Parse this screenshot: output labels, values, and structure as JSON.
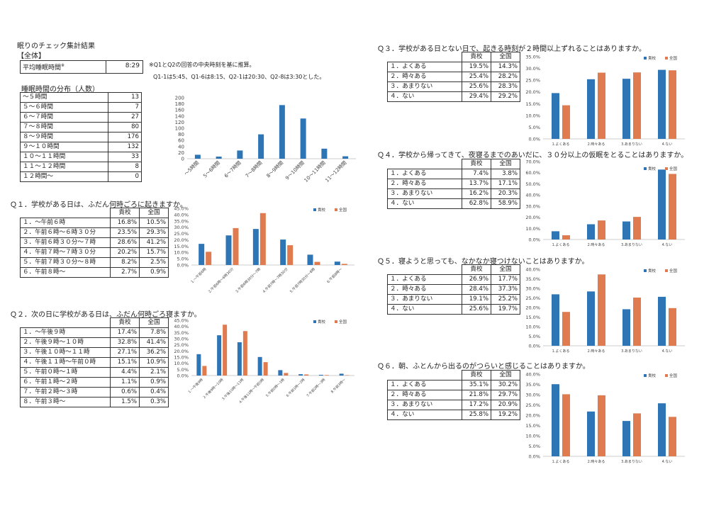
{
  "title": "眠りのチェック集計結果",
  "section_all": "【全体】",
  "avg": {
    "label": "平均睡眠時間",
    "mark": "※",
    "value": "8:29"
  },
  "notes": [
    "※Q1とQ2の回答の中央時刻を基に推算。",
    "Q1-1は5:45、Q1-6は8:15、Q2-1は20:30、Q2-8は3:30とした。"
  ],
  "dist": {
    "title": "睡眠時間の分布（人数）",
    "rows": [
      {
        "label": "～５時間",
        "value": "13"
      },
      {
        "label": "５～６時間",
        "value": "7"
      },
      {
        "label": "６～７時間",
        "value": "27"
      },
      {
        "label": "７～８時間",
        "value": "80"
      },
      {
        "label": "８～９時間",
        "value": "176"
      },
      {
        "label": "９～１０時間",
        "value": "132"
      },
      {
        "label": "１０～１１時間",
        "value": "33"
      },
      {
        "label": "１１～１２時間",
        "value": "8"
      },
      {
        "label": "１２時間～",
        "value": "0"
      }
    ]
  },
  "col_school": "貴校",
  "col_nation": "全国",
  "legend": [
    "貴校",
    "全国"
  ],
  "colors": {
    "school": "#2e75b6",
    "nation": "#e07b4f"
  },
  "questions": [
    {
      "title": "Ｑ１．学校がある日は、ふだん何時ごろに起きますか。",
      "rows": [
        {
          "label": "１．～午前６時",
          "s": "16.8%",
          "n": "10.5%"
        },
        {
          "label": "２．午前６時～６時３０分",
          "s": "23.5%",
          "n": "29.3%"
        },
        {
          "label": "３．午前６時３０分～７時",
          "s": "28.6%",
          "n": "41.2%"
        },
        {
          "label": "４．午前７時～７時３０分",
          "s": "20.2%",
          "n": "15.7%"
        },
        {
          "label": "５．午前７時３０分～８時",
          "s": "8.2%",
          "n": "2.5%"
        },
        {
          "label": "６．午前８時～",
          "s": "2.7%",
          "n": "0.9%"
        }
      ]
    },
    {
      "title": "Ｑ２．次の日に学校がある日は、ふだん何時ごろ寝ますか。",
      "rows": [
        {
          "label": "１．～午後９時",
          "s": "17.4%",
          "n": "7.8%"
        },
        {
          "label": "２．午後９時～１０時",
          "s": "32.8%",
          "n": "41.4%"
        },
        {
          "label": "３．午後１０時～１１時",
          "s": "27.1%",
          "n": "36.2%"
        },
        {
          "label": "４．午後１１時～午前０時",
          "s": "15.1%",
          "n": "10.9%"
        },
        {
          "label": "５．午前０時～１時",
          "s": "4.4%",
          "n": "2.1%"
        },
        {
          "label": "６．午前１時～２時",
          "s": "1.1%",
          "n": "0.9%"
        },
        {
          "label": "７．午前２時～３時",
          "s": "0.6%",
          "n": "0.4%"
        },
        {
          "label": "８．午前３時～",
          "s": "1.5%",
          "n": "0.3%"
        }
      ]
    },
    {
      "title": "Ｑ３．学校がある日とない日で、起きる時刻が２時間以上ずれることはありますか。",
      "rows": [
        {
          "label": "１．よくある",
          "s": "19.5%",
          "n": "14.3%"
        },
        {
          "label": "２．時々ある",
          "s": "25.4%",
          "n": "28.2%"
        },
        {
          "label": "３．あまりない",
          "s": "25.6%",
          "n": "28.3%"
        },
        {
          "label": "４．ない",
          "s": "29.4%",
          "n": "29.2%"
        }
      ]
    },
    {
      "title": "Ｑ４．学校から帰ってきて、夜寝るまでのあいだに、３０分以上の仮眠をとることはありますか。",
      "rows": [
        {
          "label": "１．よくある",
          "s": "7.4%",
          "n": "3.8%"
        },
        {
          "label": "２．時々ある",
          "s": "13.7%",
          "n": "17.1%"
        },
        {
          "label": "３．あまりない",
          "s": "16.2%",
          "n": "20.3%"
        },
        {
          "label": "４．ない",
          "s": "62.8%",
          "n": "58.9%"
        }
      ]
    },
    {
      "title": "Ｑ５．寝ようと思っても、なかなか寝つけないことはありますか。",
      "rows": [
        {
          "label": "１．よくある",
          "s": "26.9%",
          "n": "17.7%"
        },
        {
          "label": "２．時々ある",
          "s": "28.4%",
          "n": "37.3%"
        },
        {
          "label": "３．あまりない",
          "s": "19.1%",
          "n": "25.2%"
        },
        {
          "label": "４．ない",
          "s": "25.6%",
          "n": "19.7%"
        }
      ]
    },
    {
      "title": "Ｑ６．朝、ふとんから出るのがつらいと感じることはありますか。",
      "rows": [
        {
          "label": "１．よくある",
          "s": "35.1%",
          "n": "30.2%"
        },
        {
          "label": "２．時々ある",
          "s": "21.8%",
          "n": "29.7%"
        },
        {
          "label": "３．あまりない",
          "s": "17.2%",
          "n": "20.9%"
        },
        {
          "label": "４．ない",
          "s": "25.8%",
          "n": "19.2%"
        }
      ]
    }
  ],
  "chart_data": [
    {
      "type": "bar",
      "categories": [
        "～5時間",
        "5～6時間",
        "6～7時間",
        "7～8時間",
        "8～9時間",
        "9～10時間",
        "10～11時間",
        "11～12時間"
      ],
      "values": [
        13,
        7,
        27,
        80,
        176,
        132,
        33,
        8
      ],
      "ylim": [
        0,
        200
      ],
      "yticks": [
        "0",
        "20",
        "40",
        "60",
        "80",
        "100",
        "120",
        "140",
        "160",
        "180",
        "200"
      ]
    },
    {
      "type": "bar",
      "categories": [
        "1.～午前6時",
        "2.午前6時～6時30分",
        "3.午前6時30分～7時",
        "4.午前7時～7時30分",
        "5.午前7時30分～8時",
        "6.午前8時～"
      ],
      "series": [
        {
          "name": "貴校",
          "values": [
            16.8,
            23.5,
            28.6,
            20.2,
            8.2,
            2.7
          ]
        },
        {
          "name": "全国",
          "values": [
            10.5,
            29.3,
            41.2,
            15.7,
            2.5,
            0.9
          ]
        }
      ],
      "ylim": [
        0,
        45
      ],
      "yticks": [
        "0.0%",
        "5.0%",
        "10.0%",
        "15.0%",
        "20.0%",
        "25.0%",
        "30.0%",
        "35.0%",
        "40.0%",
        "45.0%"
      ]
    },
    {
      "type": "bar",
      "categories": [
        "1.～午後9時",
        "2.午後9時～10時",
        "3.午後10時～11時",
        "4.午後11時～午前0時",
        "5.午前0時～1時",
        "6.午前1時～2時",
        "7.午前2時～3時",
        "8.午前3時～"
      ],
      "series": [
        {
          "name": "貴校",
          "values": [
            17.4,
            32.8,
            27.1,
            15.1,
            4.4,
            1.1,
            0.6,
            1.5
          ]
        },
        {
          "name": "全国",
          "values": [
            7.8,
            41.4,
            36.2,
            10.9,
            2.1,
            0.9,
            0.4,
            0.3
          ]
        }
      ],
      "ylim": [
        0,
        45
      ],
      "yticks": [
        "0.0%",
        "5.0%",
        "10.0%",
        "15.0%",
        "20.0%",
        "25.0%",
        "30.0%",
        "35.0%",
        "40.0%",
        "45.0%"
      ]
    },
    {
      "type": "bar",
      "categories": [
        "1.よくある",
        "2.時々ある",
        "3.あまりない",
        "4.ない"
      ],
      "series": [
        {
          "name": "貴校",
          "values": [
            19.5,
            25.4,
            25.6,
            29.4
          ]
        },
        {
          "name": "全国",
          "values": [
            14.3,
            28.2,
            28.3,
            29.2
          ]
        }
      ],
      "ylim": [
        0,
        35
      ],
      "yticks": [
        "0.0%",
        "5.0%",
        "10.0%",
        "15.0%",
        "20.0%",
        "25.0%",
        "30.0%",
        "35.0%"
      ]
    },
    {
      "type": "bar",
      "categories": [
        "1.よくある",
        "2.時々ある",
        "3.あまりない",
        "4.ない"
      ],
      "series": [
        {
          "name": "貴校",
          "values": [
            7.4,
            13.7,
            16.2,
            62.8
          ]
        },
        {
          "name": "全国",
          "values": [
            3.8,
            17.1,
            20.3,
            58.9
          ]
        }
      ],
      "ylim": [
        0,
        70
      ],
      "yticks": [
        "0.0%",
        "10.0%",
        "20.0%",
        "30.0%",
        "40.0%",
        "50.0%",
        "60.0%",
        "70.0%"
      ]
    },
    {
      "type": "bar",
      "categories": [
        "1.よくある",
        "2.時々ある",
        "3.あまりない",
        "4.ない"
      ],
      "series": [
        {
          "name": "貴校",
          "values": [
            26.9,
            28.4,
            19.1,
            25.6
          ]
        },
        {
          "name": "全国",
          "values": [
            17.7,
            37.3,
            25.2,
            19.7
          ]
        }
      ],
      "ylim": [
        0,
        40
      ],
      "yticks": [
        "0.0%",
        "5.0%",
        "10.0%",
        "15.0%",
        "20.0%",
        "25.0%",
        "30.0%",
        "35.0%",
        "40.0%"
      ]
    },
    {
      "type": "bar",
      "categories": [
        "1.よくある",
        "2.時々ある",
        "3.あまりない",
        "4.ない"
      ],
      "series": [
        {
          "name": "貴校",
          "values": [
            35.1,
            21.8,
            17.2,
            25.8
          ]
        },
        {
          "name": "全国",
          "values": [
            30.2,
            29.7,
            20.9,
            19.2
          ]
        }
      ],
      "ylim": [
        0,
        40
      ],
      "yticks": [
        "0.0%",
        "5.0%",
        "10.0%",
        "15.0%",
        "20.0%",
        "25.0%",
        "30.0%",
        "35.0%",
        "40.0%"
      ]
    }
  ]
}
